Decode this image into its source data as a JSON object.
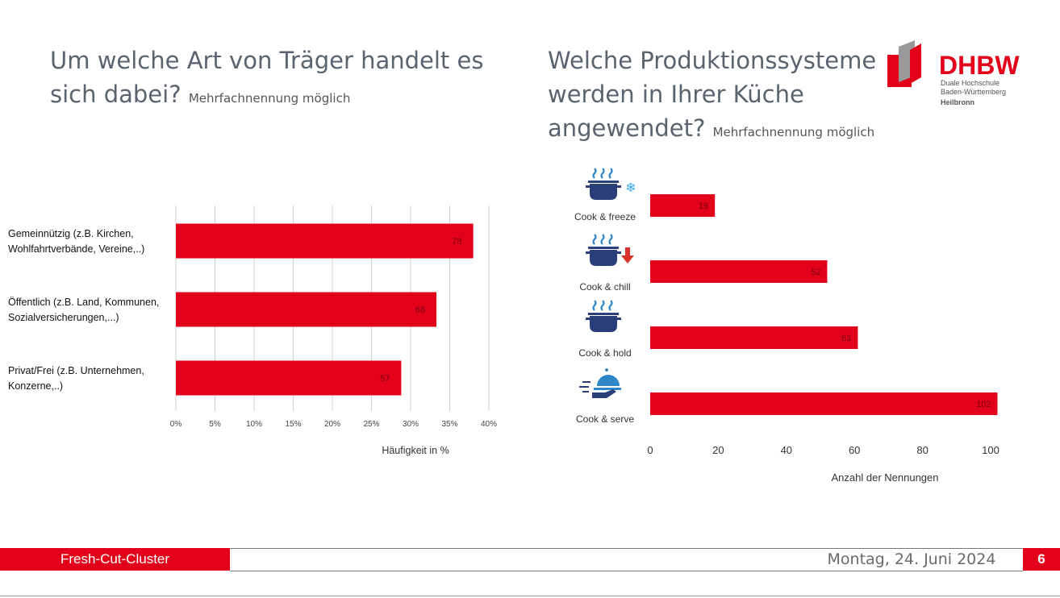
{
  "left": {
    "title": "Um welche Art von Träger handelt es sich dabei?",
    "subtitle": "Mehrfachnennung möglich"
  },
  "right": {
    "title": "Welche Produktionssysteme werden in Ihrer Küche angewendet?",
    "subtitle": "Mehrfachnennung möglich"
  },
  "logo": {
    "brand": "DHBW",
    "line1": "Duale Hochschule",
    "line2": "Baden-Württemberg",
    "line3": "Heilbronn"
  },
  "footer": {
    "cluster": "Fresh-Cut-Cluster",
    "date": "Montag, 24. Juni 2024",
    "page": "6"
  },
  "colors": {
    "accent": "#e3001b",
    "grid": "#d0d0d0",
    "icon_blue": "#2a3f7a",
    "steam_blue": "#2f86c9",
    "snow_blue": "#3aa7e6"
  },
  "chart_data": [
    {
      "type": "bar",
      "orientation": "horizontal",
      "categories": [
        "Gemeinnützig  (z.B. Kirchen,\nWohlfahrtverbände, Vereine,..)",
        "Öffentlich  (z.B. Land, Kommunen,\nSozialversicherungen,...)",
        "Privat/Frei (z.B. Unternehmen,\nKonzerne,..)"
      ],
      "values": [
        38,
        33.3,
        28.8
      ],
      "data_labels": [
        "78",
        "68",
        "57"
      ],
      "xlabel": "Häufigkeit in %",
      "ticks": [
        "0%",
        "5%",
        "10%",
        "15%",
        "20%",
        "25%",
        "30%",
        "35%",
        "40%"
      ],
      "xlim": [
        0,
        40
      ],
      "grid": true
    },
    {
      "type": "bar",
      "orientation": "horizontal",
      "categories": [
        "Cook & freeze",
        "Cook & chill",
        "Cook & hold",
        "Cook & serve"
      ],
      "icons": [
        "pot-snowflake-icon",
        "pot-cooling-arrow-icon",
        "pot-steam-icon",
        "serving-cloche-icon"
      ],
      "values": [
        19,
        52,
        61,
        102
      ],
      "xlabel": "Anzahl der Nennungen",
      "ticks": [
        "0",
        "20",
        "40",
        "60",
        "80",
        "100"
      ],
      "xlim": [
        0,
        100
      ],
      "grid": false
    }
  ]
}
